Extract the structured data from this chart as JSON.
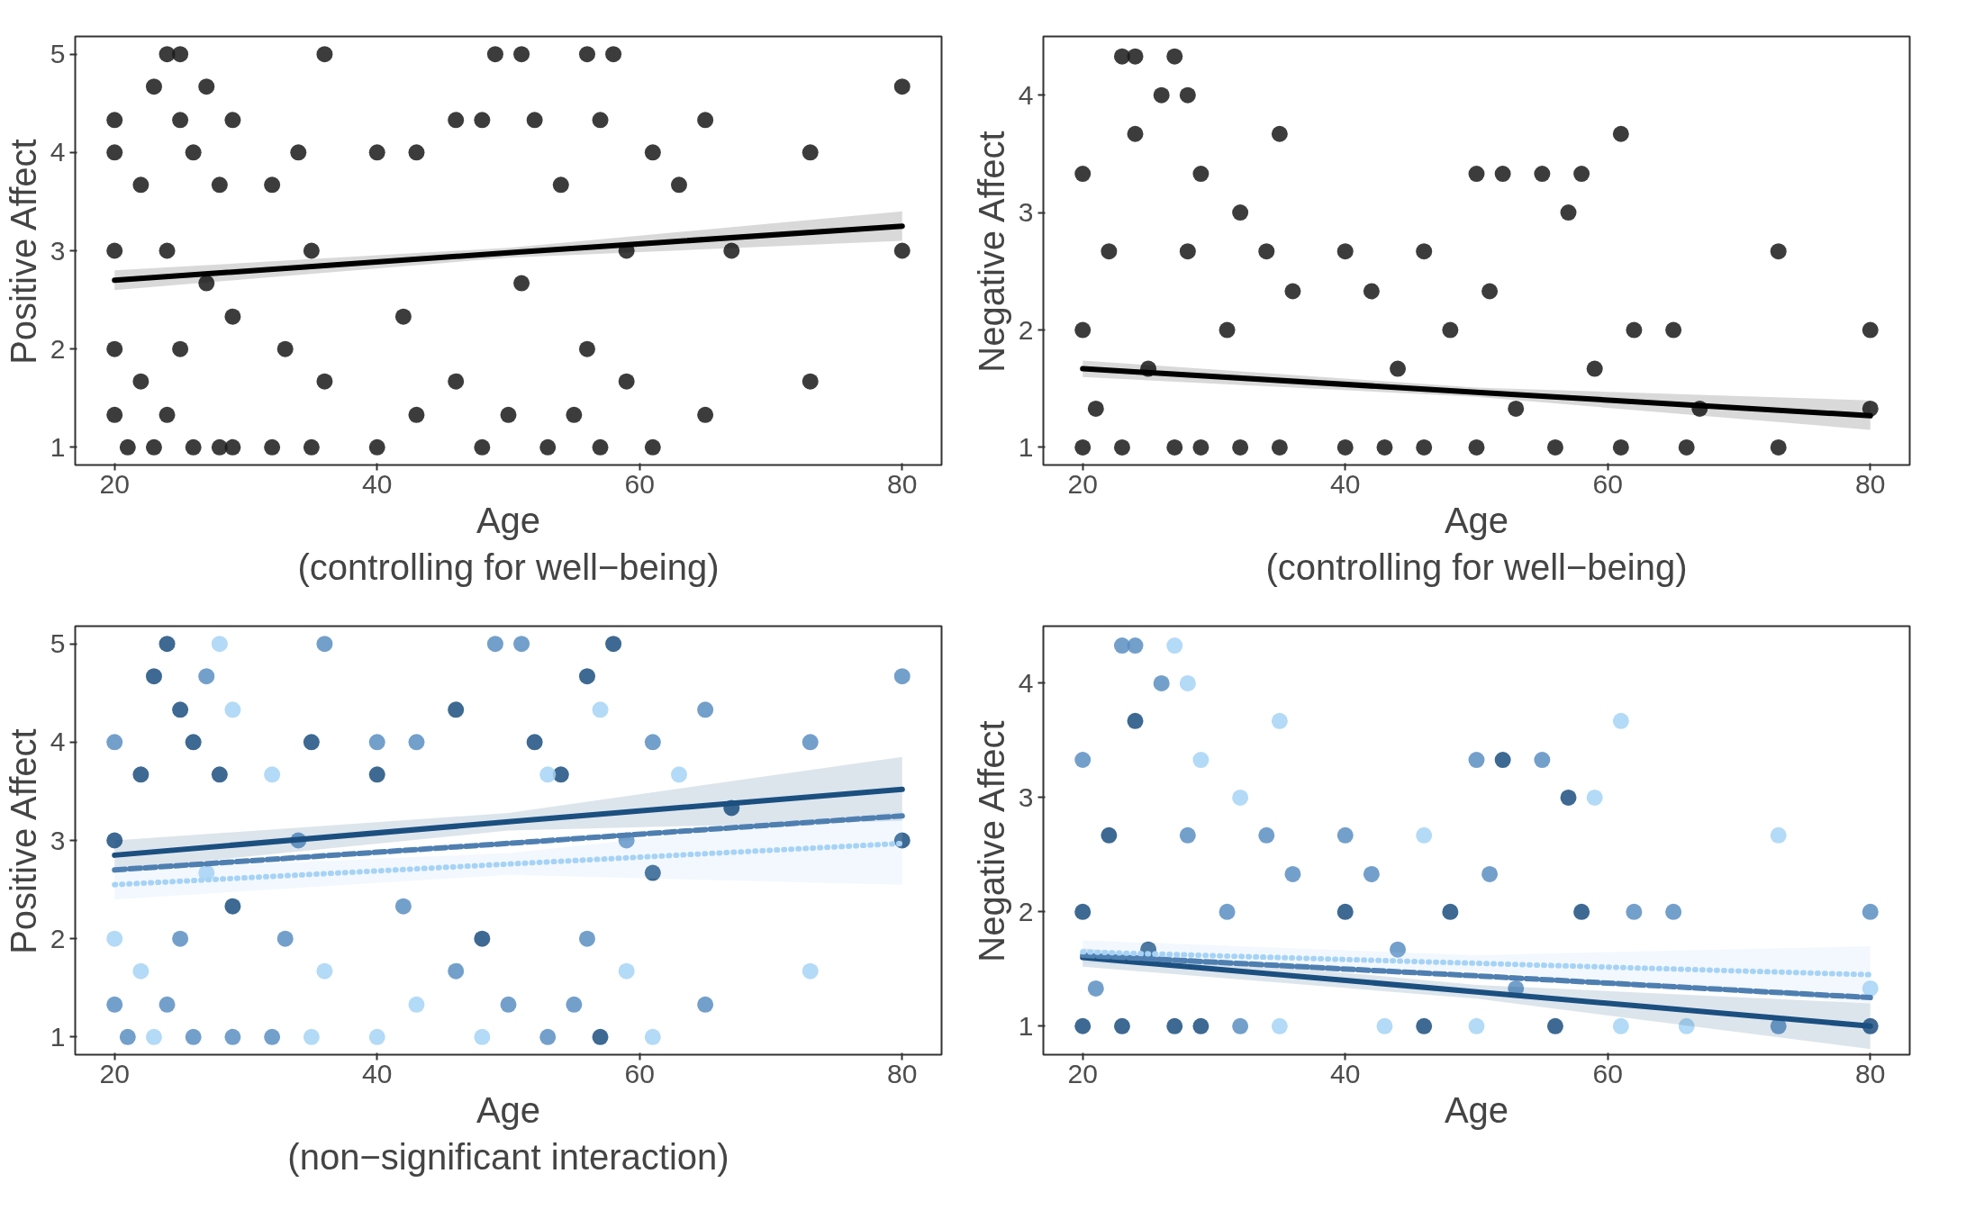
{
  "chart_data": [
    {
      "type": "scatter",
      "xlabel": "Age\n(controlling for well−being)",
      "ylabel": "Positive Affect",
      "xlim": [
        17,
        83
      ],
      "ylim": [
        0.82,
        5.18
      ],
      "xticks": [
        20,
        40,
        60,
        80
      ],
      "yticks": [
        1,
        2,
        3,
        4,
        5
      ],
      "series": [
        {
          "marker": "circle",
          "color": "#1a1a1a",
          "x": [
            20,
            20,
            20,
            20,
            20,
            21,
            22,
            22,
            23,
            23,
            24,
            24,
            24,
            25,
            25,
            25,
            26,
            26,
            27,
            27,
            28,
            28,
            29,
            29,
            29,
            32,
            32,
            33,
            34,
            35,
            35,
            36,
            36,
            40,
            40,
            42,
            43,
            43,
            46,
            46,
            48,
            48,
            49,
            50,
            51,
            51,
            52,
            53,
            54,
            55,
            56,
            56,
            57,
            57,
            58,
            59,
            59,
            61,
            61,
            63,
            65,
            65,
            67,
            73,
            73,
            80,
            80
          ],
          "values": [
            1.33,
            2,
            3,
            4,
            4.33,
            1,
            1.67,
            3.67,
            1,
            4.67,
            5,
            1.33,
            3,
            5,
            2,
            4.33,
            1,
            4,
            4.67,
            2.67,
            1,
            3.67,
            1,
            4.33,
            2.33,
            3.67,
            1,
            2,
            4,
            1,
            3,
            5,
            1.67,
            1,
            4,
            2.33,
            4,
            1.33,
            4.33,
            1.67,
            4.33,
            1,
            5,
            1.33,
            5,
            2.67,
            4.33,
            1,
            3.67,
            1.33,
            5,
            2,
            4.33,
            1,
            5,
            3,
            1.67,
            4,
            1,
            3.67,
            4.33,
            1.33,
            3,
            4,
            1.67,
            4.67,
            3
          ]
        },
        {
          "type": "line",
          "color": "#000000",
          "line_style": "solid",
          "x": [
            20,
            50,
            80
          ],
          "values": [
            2.7,
            2.98,
            3.25
          ],
          "lower": [
            2.6,
            2.93,
            3.1
          ],
          "upper": [
            2.8,
            3.03,
            3.4
          ]
        }
      ]
    },
    {
      "type": "scatter",
      "xlabel": "Age\n(controlling for well−being)",
      "ylabel": "Negative Affect",
      "xlim": [
        17,
        83
      ],
      "ylim": [
        0.85,
        4.5
      ],
      "xticks": [
        20,
        40,
        60,
        80
      ],
      "yticks": [
        1,
        2,
        3,
        4
      ],
      "series": [
        {
          "marker": "circle",
          "color": "#1a1a1a",
          "x": [
            20,
            20,
            20,
            21,
            22,
            23,
            23,
            24,
            24,
            25,
            26,
            27,
            27,
            28,
            28,
            29,
            29,
            31,
            32,
            32,
            34,
            35,
            35,
            36,
            40,
            40,
            42,
            43,
            44,
            46,
            46,
            48,
            50,
            50,
            51,
            52,
            53,
            55,
            56,
            57,
            58,
            59,
            61,
            61,
            62,
            65,
            66,
            67,
            73,
            73,
            80,
            80
          ],
          "values": [
            1,
            3.33,
            2,
            1.33,
            2.67,
            4.33,
            1,
            4.33,
            3.67,
            1.67,
            4,
            4.33,
            1,
            4,
            2.67,
            3.33,
            1,
            2,
            3,
            1,
            2.67,
            3.67,
            1,
            2.33,
            2.67,
            1,
            2.33,
            1,
            1.67,
            2.67,
            1,
            2,
            3.33,
            1,
            2.33,
            3.33,
            1.33,
            3.33,
            1,
            3,
            3.33,
            1.67,
            3.67,
            1,
            2,
            2,
            1,
            1.33,
            2.67,
            1,
            2,
            1.33
          ]
        },
        {
          "type": "line",
          "color": "#000000",
          "line_style": "solid",
          "x": [
            20,
            50,
            80
          ],
          "values": [
            1.67,
            1.47,
            1.27
          ],
          "lower": [
            1.6,
            1.43,
            1.15
          ],
          "upper": [
            1.74,
            1.51,
            1.4
          ]
        }
      ]
    },
    {
      "type": "scatter",
      "xlabel": "Age\n(non−significant interaction)",
      "ylabel": "Positive Affect",
      "xlim": [
        17,
        83
      ],
      "ylim": [
        0.82,
        5.18
      ],
      "xticks": [
        20,
        40,
        60,
        80
      ],
      "yticks": [
        1,
        2,
        3,
        4,
        5
      ],
      "series": [
        {
          "marker": "circle",
          "color": "#1b4f7f",
          "x": [
            20,
            22,
            23,
            24,
            25,
            26,
            28,
            29,
            35,
            40,
            46,
            48,
            52,
            54,
            56,
            57,
            58,
            61,
            67,
            80
          ],
          "values": [
            3,
            3.67,
            4.67,
            5,
            4.33,
            4,
            3.67,
            2.33,
            4,
            3.67,
            4.33,
            2,
            4,
            3.67,
            4.67,
            1,
            5,
            2.67,
            3.33,
            3
          ]
        },
        {
          "marker": "circle",
          "color": "#5b8ec2",
          "x": [
            20,
            20,
            21,
            24,
            25,
            26,
            27,
            29,
            32,
            33,
            34,
            36,
            40,
            42,
            43,
            46,
            49,
            50,
            51,
            53,
            55,
            56,
            59,
            61,
            65,
            65,
            73,
            80
          ],
          "values": [
            1.33,
            4,
            1,
            1.33,
            2,
            1,
            4.67,
            1,
            1,
            2,
            3,
            5,
            4,
            2.33,
            4,
            1.67,
            5,
            1.33,
            5,
            1,
            1.33,
            2,
            3,
            4,
            4.33,
            1.33,
            4,
            4.67
          ]
        },
        {
          "marker": "circle",
          "color": "#a6d3f5",
          "x": [
            20,
            22,
            23,
            27,
            28,
            29,
            32,
            35,
            36,
            40,
            43,
            48,
            53,
            57,
            59,
            61,
            63,
            73
          ],
          "values": [
            2,
            1.67,
            1,
            2.67,
            5,
            4.33,
            3.67,
            1,
            1.67,
            1,
            1.33,
            1,
            3.67,
            4.33,
            1.67,
            1,
            3.67,
            1.67
          ]
        },
        {
          "type": "line",
          "color": "#1b4f7f",
          "line_style": "solid",
          "x": [
            20,
            50,
            80
          ],
          "values": [
            2.85,
            3.19,
            3.52
          ],
          "lower": [
            2.7,
            3.1,
            3.2
          ],
          "upper": [
            3,
            3.28,
            3.85
          ]
        },
        {
          "type": "line",
          "color": "#4f7fb0",
          "line_style": "dashed",
          "x": [
            20,
            50,
            80
          ],
          "values": [
            2.7,
            2.97,
            3.25
          ]
        },
        {
          "type": "line",
          "color": "#a6d3f5",
          "line_style": "dotted",
          "x": [
            20,
            50,
            80
          ],
          "values": [
            2.55,
            2.76,
            2.97
          ],
          "lower": [
            2.4,
            2.65,
            2.55
          ],
          "upper": [
            2.7,
            2.87,
            3.3
          ]
        }
      ]
    },
    {
      "type": "scatter",
      "xlabel": "Age",
      "ylabel": "Negative Affect",
      "xlim": [
        17,
        83
      ],
      "ylim": [
        0.75,
        4.5
      ],
      "xticks": [
        20,
        40,
        60,
        80
      ],
      "yticks": [
        1,
        2,
        3,
        4
      ],
      "series": [
        {
          "marker": "circle",
          "color": "#1b4f7f",
          "x": [
            20,
            20,
            22,
            23,
            24,
            25,
            27,
            29,
            40,
            46,
            48,
            52,
            56,
            57,
            58,
            80
          ],
          "values": [
            1,
            2,
            2.67,
            1,
            3.67,
            1.67,
            1,
            1,
            2,
            1,
            2,
            3.33,
            1,
            3,
            2,
            1
          ]
        },
        {
          "marker": "circle",
          "color": "#5b8ec2",
          "x": [
            20,
            21,
            23,
            24,
            26,
            28,
            31,
            32,
            34,
            36,
            40,
            42,
            44,
            50,
            51,
            53,
            55,
            62,
            65,
            73,
            80
          ],
          "values": [
            3.33,
            1.33,
            4.33,
            4.33,
            4,
            2.67,
            2,
            1,
            2.67,
            2.33,
            2.67,
            2.33,
            1.67,
            3.33,
            2.33,
            1.33,
            3.33,
            2,
            2,
            1,
            2
          ]
        },
        {
          "marker": "circle",
          "color": "#a6d3f5",
          "x": [
            27,
            28,
            29,
            32,
            35,
            35,
            43,
            46,
            50,
            59,
            61,
            61,
            66,
            73,
            80
          ],
          "values": [
            4.33,
            4,
            3.33,
            3,
            3.67,
            1,
            1,
            2.67,
            1,
            3,
            3.67,
            1,
            1,
            2.67,
            1.33
          ]
        },
        {
          "type": "line",
          "color": "#1b4f7f",
          "line_style": "solid",
          "x": [
            20,
            50,
            80
          ],
          "values": [
            1.6,
            1.3,
            1.0
          ],
          "lower": [
            1.52,
            1.24,
            0.8
          ],
          "upper": [
            1.68,
            1.36,
            1.2
          ]
        },
        {
          "type": "line",
          "color": "#4f7fb0",
          "line_style": "dashed",
          "x": [
            20,
            50,
            80
          ],
          "values": [
            1.62,
            1.44,
            1.25
          ]
        },
        {
          "type": "line",
          "color": "#a6d3f5",
          "line_style": "dotted",
          "x": [
            20,
            50,
            80
          ],
          "values": [
            1.65,
            1.55,
            1.45
          ],
          "lower": [
            1.55,
            1.48,
            1.2
          ],
          "upper": [
            1.75,
            1.62,
            1.7
          ]
        }
      ]
    }
  ]
}
